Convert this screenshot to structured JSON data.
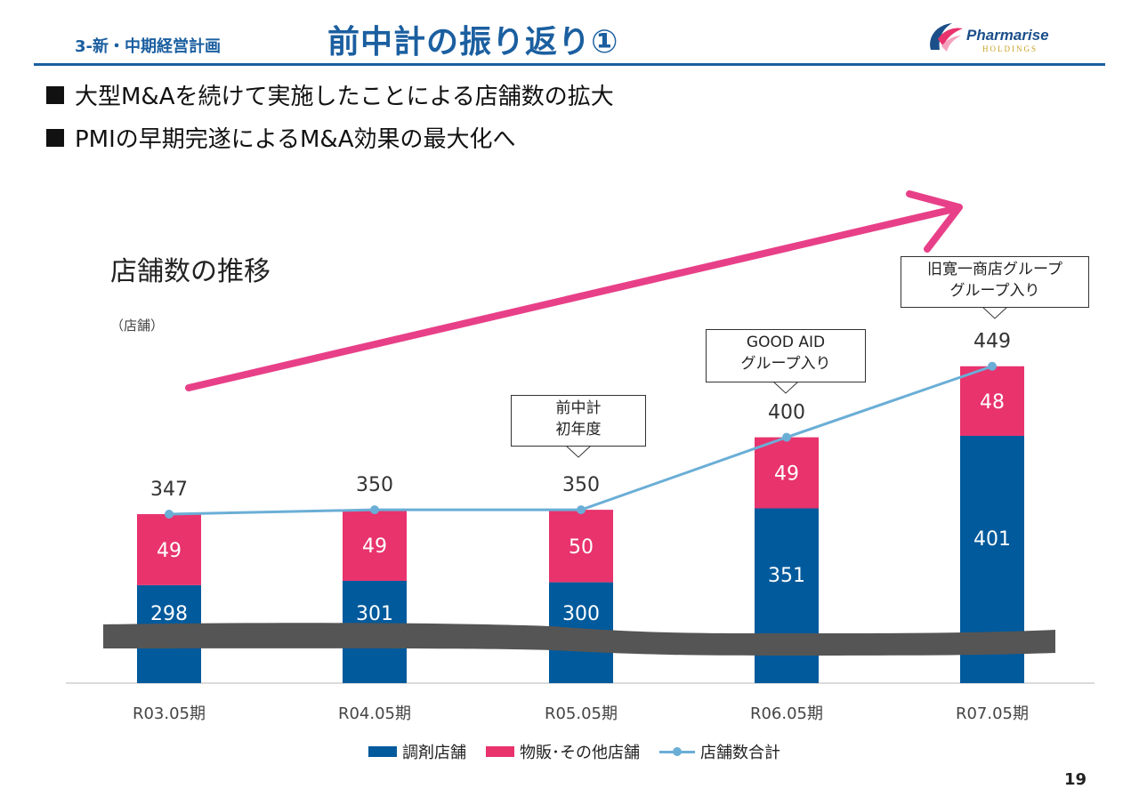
{
  "header": {
    "section": "3-新・中期経営計画",
    "title": "前中計の振り返り①",
    "logo": {
      "name": "Pharmarise",
      "sub": "HOLDINGS"
    }
  },
  "bullets": [
    "大型M&Aを続けて実施したことによる店舗数の拡大",
    "PMIの早期完遂によるM&A効果の最大化へ"
  ],
  "page_number": "19",
  "colors": {
    "brand": "#1b5fa0",
    "dispensing": "#005a9c",
    "other": "#e8336d",
    "total_line": "#6aaed6",
    "arrow": "#e84088",
    "break_band": "#555555"
  },
  "chart_data": {
    "type": "bar",
    "title": "店舗数の推移",
    "unit": "（店舗）",
    "stacked": true,
    "categories": [
      "R03.05期",
      "R04.05期",
      "R05.05期",
      "R06.05期",
      "R07.05期"
    ],
    "series": [
      {
        "name": "調剤店舗",
        "type": "bar",
        "values": [
          298,
          301,
          300,
          351,
          401
        ]
      },
      {
        "name": "物販･その他店舗",
        "type": "bar",
        "values": [
          49,
          49,
          50,
          49,
          48
        ]
      },
      {
        "name": "店舗数合計",
        "type": "line",
        "values": [
          347,
          350,
          350,
          400,
          449
        ]
      }
    ],
    "axis_break": true,
    "legend": "bottom",
    "callouts": [
      {
        "category": "R05.05期",
        "lines": [
          "前中計",
          "初年度"
        ]
      },
      {
        "category": "R06.05期",
        "lines": [
          "GOOD AID",
          "グループ入り"
        ]
      },
      {
        "category": "R07.05期",
        "lines": [
          "旧寛一商店グループ",
          "グループ入り"
        ]
      }
    ]
  }
}
